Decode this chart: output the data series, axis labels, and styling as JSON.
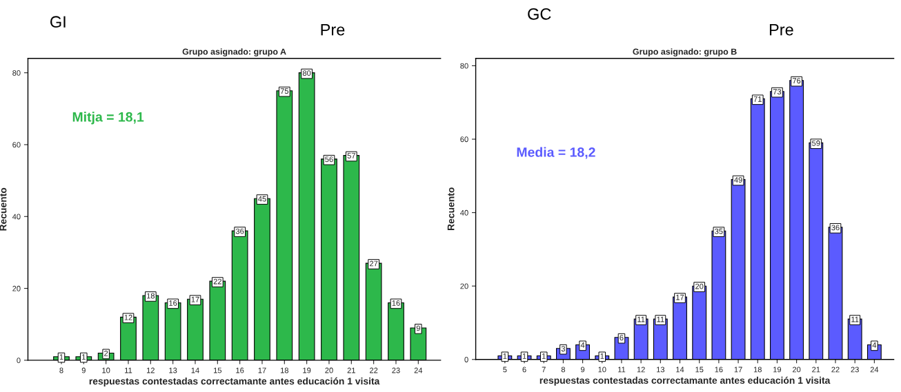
{
  "chart_data": [
    {
      "type": "bar",
      "title": "Grupo asignado: grupo A",
      "xlabel": "respuestas contestadas correctamante antes educación 1 visita",
      "ylabel": "Recuento",
      "categories": [
        "8",
        "9",
        "10",
        "11",
        "12",
        "13",
        "14",
        "15",
        "16",
        "17",
        "18",
        "19",
        "20",
        "21",
        "22",
        "23",
        "24"
      ],
      "series": [
        {
          "color": "#2db84b",
          "values": [
            1,
            1,
            2,
            12,
            18,
            16,
            17,
            22,
            36,
            45,
            75,
            80,
            56,
            57,
            27,
            16,
            9
          ]
        }
      ],
      "ylim": [
        0,
        84
      ],
      "yticks": [
        0,
        20,
        40,
        60,
        80
      ],
      "data_labels": true,
      "grid": false,
      "legend": false,
      "annotations": [
        "GI",
        "Pre",
        "Mitja = 18,1"
      ]
    },
    {
      "type": "bar",
      "title": "Grupo asignado: grupo B",
      "xlabel": "respuestas contestadas correctamante antes educación 1 visita",
      "ylabel": "Recuento",
      "categories": [
        "5",
        "6",
        "7",
        "8",
        "9",
        "10",
        "11",
        "12",
        "13",
        "14",
        "15",
        "16",
        "17",
        "18",
        "19",
        "20",
        "21",
        "22",
        "23",
        "24"
      ],
      "series": [
        {
          "color": "#5b5bff",
          "values": [
            1,
            1,
            1,
            3,
            4,
            1,
            6,
            11,
            11,
            17,
            20,
            35,
            49,
            71,
            73,
            76,
            59,
            36,
            11,
            4
          ]
        }
      ],
      "ylim": [
        0,
        82
      ],
      "yticks": [
        0,
        20,
        40,
        60,
        80
      ],
      "data_labels": true,
      "grid": false,
      "legend": false,
      "annotations": [
        "GC",
        "Pre",
        "Media = 18,2"
      ]
    }
  ]
}
